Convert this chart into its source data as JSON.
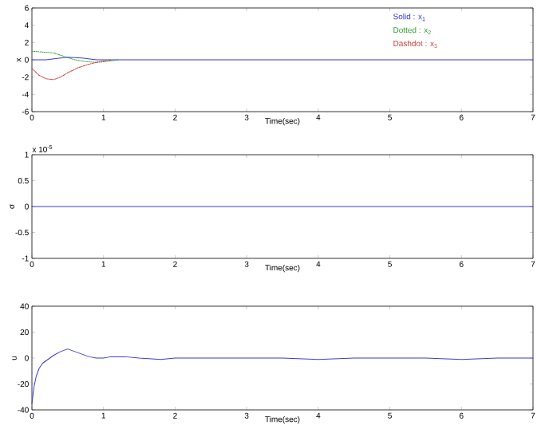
{
  "chart_data": [
    {
      "type": "line",
      "xlabel": "Time(sec)",
      "ylabel": "x",
      "xlim": [
        0,
        7
      ],
      "xticks": [
        0,
        1,
        2,
        3,
        4,
        5,
        6,
        7
      ],
      "ylim": [
        -6,
        6
      ],
      "yticks": [
        -6,
        -4,
        -2,
        0,
        2,
        4,
        6
      ],
      "legend": "top right",
      "series": [
        {
          "name": "Solid : x$_{1}$",
          "color": "#3b3bd0",
          "line_style": "solid",
          "x": [
            0,
            0.2,
            0.4,
            0.5,
            0.7,
            0.9,
            1.2,
            1.6,
            2,
            3,
            4,
            5,
            6,
            7
          ],
          "values": [
            0,
            0,
            0.2,
            0.3,
            0.2,
            0,
            0,
            0,
            0,
            0,
            0,
            0,
            0,
            0
          ]
        },
        {
          "name": "Dotted : x$_{2}$",
          "color": "#2e9e2e",
          "line_style": "dotted",
          "x": [
            0,
            0.15,
            0.3,
            0.45,
            0.6,
            0.75,
            0.9,
            1.05,
            1.2
          ],
          "values": [
            1,
            0.9,
            0.8,
            0.4,
            0,
            -0.2,
            -0.3,
            -0.2,
            0
          ]
        },
        {
          "name": "Dashdot : x$_{3}$",
          "color": "#d03b3b",
          "line_style": "dashdotted",
          "x": [
            0,
            0.1,
            0.2,
            0.3,
            0.4,
            0.5,
            0.65,
            0.8,
            0.95,
            1.1
          ],
          "values": [
            -1,
            -1.8,
            -2.2,
            -2.3,
            -2,
            -1.5,
            -0.9,
            -0.5,
            -0.2,
            0
          ]
        }
      ]
    },
    {
      "type": "line",
      "xlabel": "Time(sec)",
      "ylabel": "σ",
      "annotations": [
        "x 10$^{-5}$"
      ],
      "xlim": [
        0,
        7
      ],
      "xticks": [
        0,
        1,
        2,
        3,
        4,
        5,
        6,
        7
      ],
      "ylim": [
        -1,
        1
      ],
      "yticks": [
        -1,
        -0.5,
        0,
        0.5,
        1
      ],
      "series": [
        {
          "color": "#3b3bd0",
          "line_style": "solid",
          "x": [
            0,
            7
          ],
          "values": [
            0,
            0
          ]
        }
      ]
    },
    {
      "type": "line",
      "xlabel": "Time(sec)",
      "ylabel": "u",
      "xlim": [
        0,
        7
      ],
      "xticks": [
        0,
        1,
        2,
        3,
        4,
        5,
        6,
        7
      ],
      "ylim": [
        -40,
        40
      ],
      "yticks": [
        -40,
        -20,
        0,
        20,
        40
      ],
      "series": [
        {
          "color": "#3b3bd0",
          "line_style": "solid",
          "x": [
            0,
            0.03,
            0.06,
            0.1,
            0.15,
            0.2,
            0.25,
            0.3,
            0.4,
            0.5,
            0.6,
            0.7,
            0.8,
            0.9,
            1.0,
            1.1,
            1.3,
            1.5,
            1.8,
            2,
            2.5,
            3,
            3.5,
            4,
            4.5,
            5,
            5.5,
            6,
            6.5,
            7
          ],
          "values": [
            -35,
            -22,
            -14,
            -8,
            -4,
            -2,
            0,
            2,
            5,
            7,
            5,
            3,
            1,
            0,
            0,
            1,
            1,
            0,
            -1,
            0,
            0,
            0,
            0,
            -1,
            0,
            0,
            0,
            -1,
            0,
            0
          ]
        }
      ]
    }
  ]
}
